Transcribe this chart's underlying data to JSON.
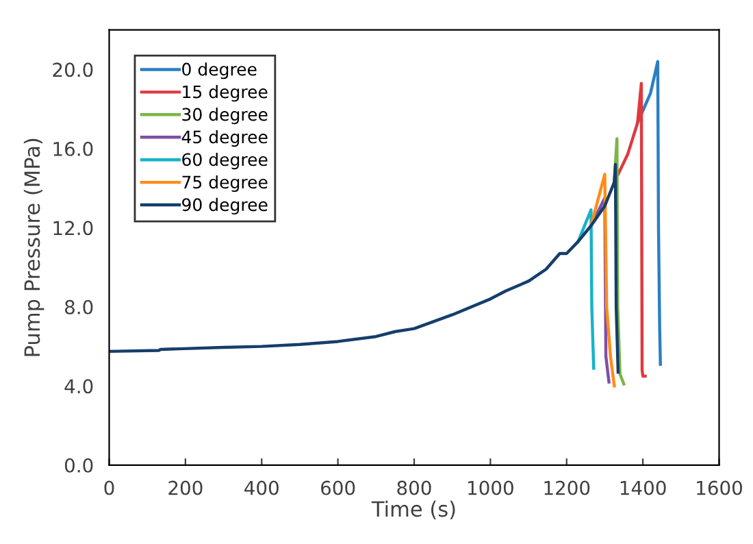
{
  "chart_data": {
    "type": "line",
    "xlabel": "Time (s)",
    "ylabel": "Pump Pressure (MPa)",
    "xlim": [
      0,
      1600
    ],
    "xticks": [
      0,
      200,
      400,
      600,
      800,
      1000,
      1200,
      1400,
      1600
    ],
    "ylim": [
      0,
      22
    ],
    "yticks": [
      {
        "value": 0,
        "label": "0.0"
      },
      {
        "value": 4,
        "label": "4.0"
      },
      {
        "value": 8,
        "label": "8.0"
      },
      {
        "value": 12,
        "label": "12.0"
      },
      {
        "value": 16,
        "label": "16.0"
      },
      {
        "value": 20,
        "label": "20.0"
      }
    ],
    "grid": false,
    "legend": "top left",
    "marker": "none",
    "line_style": "solid",
    "series": [
      {
        "name": "0 degree",
        "color": "#2a7fc4",
        "x": [
          1386,
          1420,
          1439,
          1441,
          1444,
          1446
        ],
        "values": [
          17.3,
          18.8,
          20.4,
          12.0,
          7.0,
          5.1
        ]
      },
      {
        "name": "15 degree",
        "color": "#e0393e",
        "x": [
          1325,
          1360,
          1386,
          1396,
          1397,
          1398,
          1400,
          1406
        ],
        "values": [
          14.3,
          15.7,
          17.3,
          19.3,
          12.0,
          4.8,
          4.5,
          4.5
        ]
      },
      {
        "name": "30 degree",
        "color": "#7ab648",
        "x": [
          1325,
          1332,
          1334,
          1340,
          1350
        ],
        "values": [
          14.3,
          16.5,
          8.0,
          4.6,
          4.1
        ]
      },
      {
        "name": "45 degree",
        "color": "#7e4fa8",
        "x": [
          1264,
          1300,
          1303,
          1311
        ],
        "values": [
          12.1,
          13.5,
          5.5,
          4.2
        ]
      },
      {
        "name": "60 degree",
        "color": "#17b3c9",
        "x": [
          1230,
          1264,
          1266,
          1271
        ],
        "values": [
          11.3,
          12.9,
          8.0,
          4.9
        ]
      },
      {
        "name": "75 degree",
        "color": "#ff8c1a",
        "x": [
          1264,
          1300,
          1305,
          1315,
          1325
        ],
        "values": [
          12.1,
          14.7,
          8.0,
          5.5,
          4.0
        ]
      },
      {
        "name": "90 degree",
        "color": "#153e6a",
        "x": [
          0,
          130,
          135,
          300,
          400,
          500,
          600,
          700,
          750,
          800,
          900,
          1000,
          1040,
          1100,
          1146,
          1182,
          1200,
          1230,
          1264,
          1300,
          1325,
          1328,
          1330,
          1335
        ],
        "values": [
          5.75,
          5.8,
          5.85,
          5.95,
          6.0,
          6.1,
          6.25,
          6.5,
          6.75,
          6.9,
          7.6,
          8.4,
          8.8,
          9.3,
          9.9,
          10.7,
          10.7,
          11.3,
          12.1,
          13.1,
          14.3,
          15.2,
          8.0,
          4.7
        ]
      }
    ]
  }
}
